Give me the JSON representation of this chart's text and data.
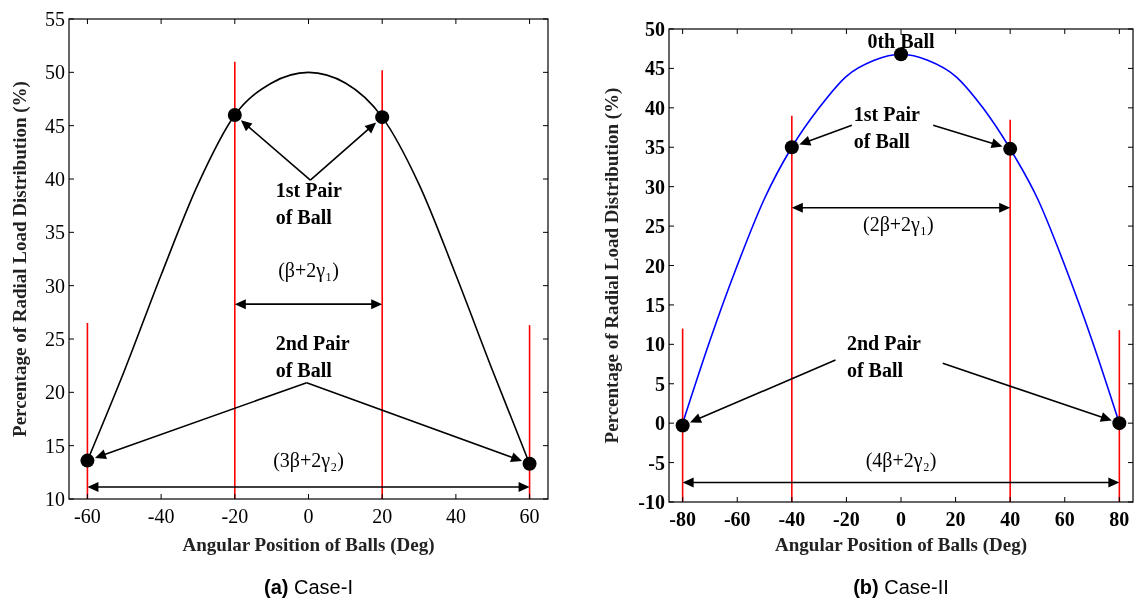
{
  "chart_data": [
    {
      "type": "line",
      "title": "(a) Case-I",
      "xlabel": "Angular Position of Balls (Deg)",
      "ylabel": "Percentage of Radial Load Distribution (%)",
      "xlim": [
        -65,
        65
      ],
      "xticks": [
        -60,
        -40,
        -20,
        0,
        20,
        40,
        60
      ],
      "ylim": [
        10,
        55
      ],
      "yticks": [
        10,
        15,
        20,
        25,
        30,
        35,
        40,
        45,
        50,
        55
      ],
      "series": [
        {
          "color": "#000000",
          "x": [
            -60,
            -50,
            -40,
            -30,
            -20,
            -10,
            0,
            10,
            20,
            30,
            40,
            50,
            60
          ],
          "values": [
            13.6,
            22,
            31,
            39.5,
            46,
            49,
            50,
            49,
            45.8,
            39.5,
            31,
            22,
            13.3
          ]
        },
        {
          "type": "scatter",
          "marker": "circle",
          "color": "#000000",
          "x": [
            -60,
            -20,
            20,
            60
          ],
          "values": [
            13.6,
            46,
            45.8,
            13.3
          ]
        }
      ],
      "ref_lines": [
        {
          "axis": "x",
          "value": -60,
          "color": "#ff0000"
        },
        {
          "axis": "x",
          "value": -20,
          "color": "#ff0000"
        },
        {
          "axis": "x",
          "value": 20,
          "color": "#ff0000"
        },
        {
          "axis": "x",
          "value": 60,
          "color": "#ff0000"
        }
      ],
      "annotations": [
        "1st Pair\nof Ball",
        "(β+2γ₁)",
        "2nd Pair\nof Ball",
        "(3β+2γ₂)"
      ]
    },
    {
      "type": "line",
      "title": "(b) Case-II",
      "xlabel": "Angular Position of Balls (Deg)",
      "ylabel": "Percentage of Radial Load Distribution (%)",
      "xlim": [
        -85,
        85
      ],
      "xticks": [
        -80,
        -60,
        -40,
        -20,
        0,
        20,
        40,
        60,
        80
      ],
      "ylim": [
        -10,
        50
      ],
      "yticks": [
        -10,
        -5,
        0,
        5,
        10,
        15,
        20,
        25,
        30,
        35,
        40,
        45,
        50
      ],
      "series": [
        {
          "color": "#0000ff",
          "x": [
            -80,
            -70,
            -60,
            -50,
            -40,
            -30,
            -20,
            -10,
            0,
            10,
            20,
            30,
            40,
            50,
            60,
            70,
            80
          ],
          "values": [
            0,
            10.5,
            20,
            28.5,
            35,
            40,
            44,
            46,
            46.8,
            46,
            44,
            40,
            34.8,
            28.5,
            20,
            10.5,
            0
          ]
        },
        {
          "type": "scatter",
          "marker": "circle",
          "color": "#000000",
          "x": [
            -80,
            -40,
            0,
            40,
            80
          ],
          "values": [
            -0.3,
            35,
            46.8,
            34.8,
            0
          ]
        }
      ],
      "ref_lines": [
        {
          "axis": "x",
          "value": -80,
          "color": "#ff0000"
        },
        {
          "axis": "x",
          "value": -40,
          "color": "#ff0000"
        },
        {
          "axis": "x",
          "value": 40,
          "color": "#ff0000"
        },
        {
          "axis": "x",
          "value": 80,
          "color": "#ff0000"
        }
      ],
      "annotations": [
        "0th Ball",
        "1st Pair\nof Ball",
        "(2β+2γ₁)",
        "2nd Pair\nof Ball",
        "(4β+2γ₂)"
      ]
    }
  ]
}
